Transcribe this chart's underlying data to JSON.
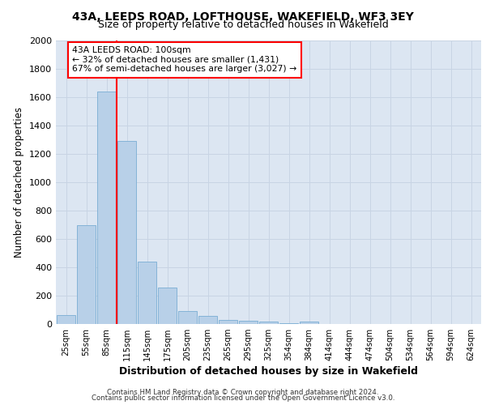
{
  "title_line1": "43A, LEEDS ROAD, LOFTHOUSE, WAKEFIELD, WF3 3EY",
  "title_line2": "Size of property relative to detached houses in Wakefield",
  "xlabel": "Distribution of detached houses by size in Wakefield",
  "ylabel": "Number of detached properties",
  "bar_color": "#b8d0e8",
  "bar_edge_color": "#7aadd4",
  "categories": [
    "25sqm",
    "55sqm",
    "85sqm",
    "115sqm",
    "145sqm",
    "175sqm",
    "205sqm",
    "235sqm",
    "265sqm",
    "295sqm",
    "325sqm",
    "354sqm",
    "384sqm",
    "414sqm",
    "444sqm",
    "474sqm",
    "504sqm",
    "534sqm",
    "564sqm",
    "594sqm",
    "624sqm"
  ],
  "values": [
    65,
    700,
    1640,
    1290,
    440,
    255,
    90,
    55,
    30,
    22,
    15,
    8,
    15,
    0,
    0,
    0,
    0,
    0,
    0,
    0,
    0
  ],
  "annotation_text": "43A LEEDS ROAD: 100sqm\n← 32% of detached houses are smaller (1,431)\n67% of semi-detached houses are larger (3,027) →",
  "annotation_box_color": "white",
  "annotation_box_edge_color": "red",
  "vline_color": "red",
  "vline_x": 2.5,
  "ylim": [
    0,
    2000
  ],
  "yticks": [
    0,
    200,
    400,
    600,
    800,
    1000,
    1200,
    1400,
    1600,
    1800,
    2000
  ],
  "grid_color": "#c8d4e4",
  "background_color": "#dce6f2",
  "footer_line1": "Contains HM Land Registry data © Crown copyright and database right 2024.",
  "footer_line2": "Contains public sector information licensed under the Open Government Licence v3.0."
}
